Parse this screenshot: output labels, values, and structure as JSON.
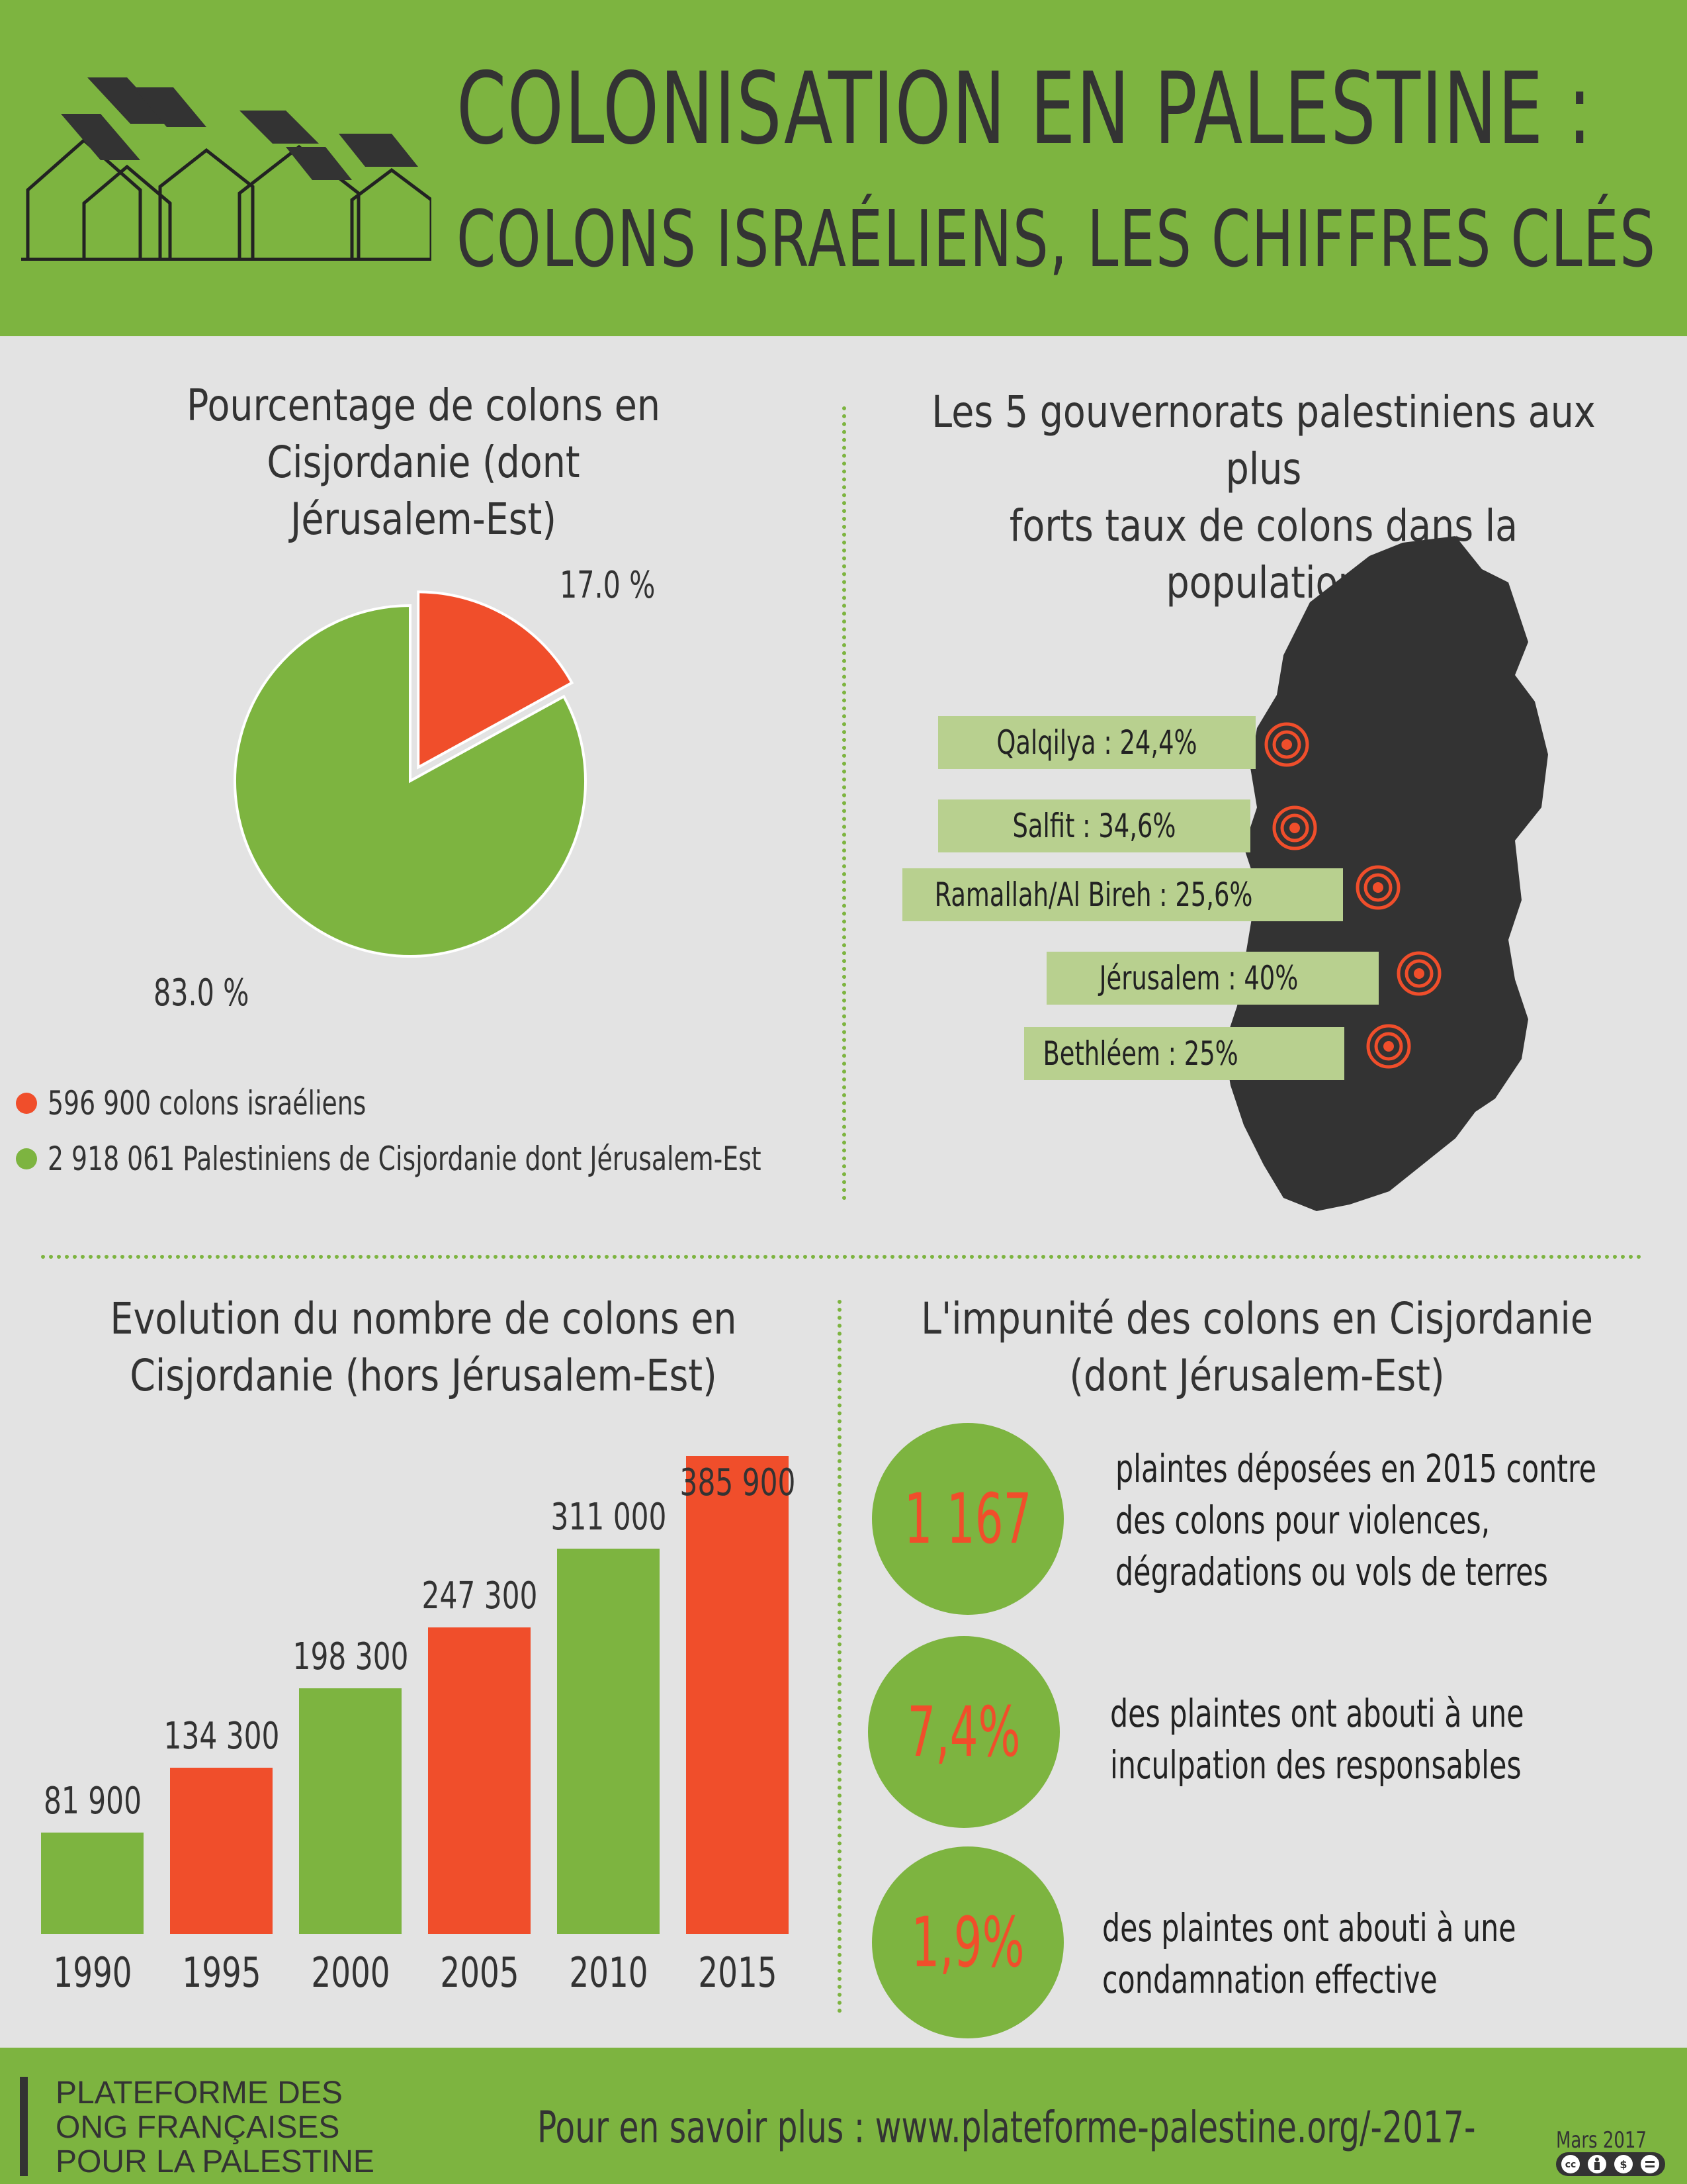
{
  "header": {
    "title_line1": "COLONISATION EN PALESTINE :",
    "title_line2": "COLONS ISRAÉLIENS, LES CHIFFRES CLÉS",
    "logo_icon": "houses-logo-icon"
  },
  "colors": {
    "green": "#7db440",
    "orange": "#f04e2b",
    "dark": "#333333",
    "light_green": "#b8d08f",
    "background": "#e3e3e3"
  },
  "pie_section": {
    "title_line1": "Pourcentage de colons en Cisjordanie (dont",
    "title_line2": "Jérusalem-Est)",
    "slice_labels": [
      "17.0 %",
      "83.0 %"
    ],
    "legend": [
      "596 900 colons israéliens",
      "2 918 061 Palestiniens de Cisjordanie dont Jérusalem-Est"
    ]
  },
  "map_section": {
    "title_line1": "Les 5 gouvernorats palestiniens aux plus",
    "title_line2": "forts taux de colons dans la population",
    "governorates": [
      "Qalqilya : 24,4%",
      "Salfit : 34,6%",
      "Ramallah/Al Bireh : 25,6%",
      "Jérusalem : 40%",
      "Bethléem : 25%"
    ],
    "marker_icon": "target-icon"
  },
  "bar_section": {
    "title_line1": "Evolution du nombre de colons en",
    "title_line2": "Cisjordanie (hors Jérusalem-Est)"
  },
  "impunity_section": {
    "title_line1": "L'impunité des colons en Cisjordanie",
    "title_line2": "(dont Jérusalem-Est)",
    "stats": [
      {
        "value": "1 167",
        "text_lines": [
          "plaintes déposées en 2015 contre",
          "des colons pour violences,",
          "dégradations ou vols de terres"
        ]
      },
      {
        "value": "7,4%",
        "text_lines": [
          "des plaintes ont abouti à une",
          "inculpation des responsables"
        ]
      },
      {
        "value": "1,9%",
        "text_lines": [
          "des plaintes ont abouti à une",
          "condamnation effective"
        ]
      }
    ]
  },
  "footer": {
    "org_lines": [
      "PLATEFORME DES",
      "ONG FRANÇAISES",
      "POUR LA PALESTINE"
    ],
    "url_text": "Pour en savoir plus : www.plateforme-palestine.org/-2017-",
    "date": "Mars 2017",
    "license_icon": "creative-commons-icon"
  },
  "chart_data": [
    {
      "type": "pie",
      "title": "Pourcentage de colons en Cisjordanie (dont Jérusalem-Est)",
      "slices": [
        {
          "name": "596 900 colons israéliens",
          "value": 17.0,
          "label": "17.0 %",
          "color": "#f04e2b",
          "exploded": true
        },
        {
          "name": "2 918 061 Palestiniens de Cisjordanie dont Jérusalem-Est",
          "value": 83.0,
          "label": "83.0 %",
          "color": "#7db440"
        }
      ],
      "legend_position": "bottom-left"
    },
    {
      "type": "bar",
      "title": "Evolution du nombre de colons en Cisjordanie (hors Jérusalem-Est)",
      "categories": [
        "1990",
        "1995",
        "2000",
        "2005",
        "2010",
        "2015"
      ],
      "values": [
        81900,
        134300,
        198300,
        247300,
        311000,
        385900
      ],
      "value_labels": [
        "81 900",
        "134 300",
        "198 300",
        "247 300",
        "311 000",
        "385 900"
      ],
      "colors": [
        "#7db440",
        "#f04e2b",
        "#7db440",
        "#f04e2b",
        "#7db440",
        "#f04e2b"
      ],
      "ylim": [
        0,
        385900
      ],
      "grid": false,
      "legend": false
    }
  ]
}
